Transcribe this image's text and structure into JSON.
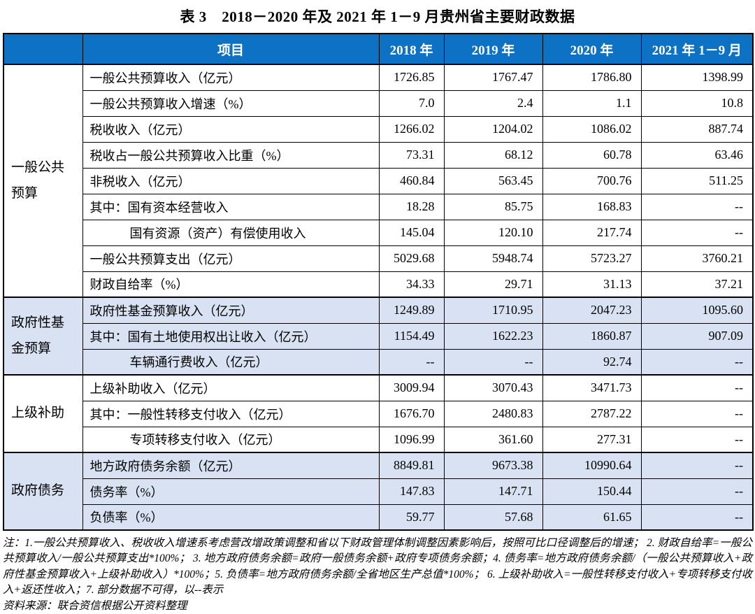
{
  "title": "表 3　2018－2020 年及 2021 年 1－9 月贵州省主要财政数据",
  "table": {
    "item_header": "项目",
    "year_headers": [
      "2018 年",
      "2019 年",
      "2020 年",
      "2021 年 1－9 月"
    ],
    "groups": [
      {
        "name": "一般公共\n预算",
        "shaded": false,
        "rows": [
          {
            "label": "一般公共预算收入（亿元）",
            "indent": 0,
            "values": [
              "1726.85",
              "1767.47",
              "1786.80",
              "1398.99"
            ]
          },
          {
            "label": "一般公共预算收入增速（%）",
            "indent": 0,
            "values": [
              "7.0",
              "2.4",
              "1.1",
              "10.8"
            ]
          },
          {
            "label": "税收收入（亿元）",
            "indent": 0,
            "values": [
              "1266.02",
              "1204.02",
              "1086.02",
              "887.74"
            ]
          },
          {
            "label": "税收占一般公共预算收入比重（%）",
            "indent": 0,
            "values": [
              "73.31",
              "68.12",
              "60.78",
              "63.46"
            ]
          },
          {
            "label": "非税收入（亿元）",
            "indent": 0,
            "values": [
              "460.84",
              "563.45",
              "700.76",
              "511.25"
            ]
          },
          {
            "label": "其中：国有资本经营收入",
            "indent": 0,
            "values": [
              "18.28",
              "85.75",
              "168.83",
              "--"
            ]
          },
          {
            "label": "国有资源（资产）有偿使用收入",
            "indent": 1,
            "values": [
              "145.04",
              "120.10",
              "217.74",
              "--"
            ]
          },
          {
            "label": "一般公共预算支出（亿元）",
            "indent": 0,
            "values": [
              "5029.68",
              "5948.74",
              "5723.27",
              "3760.21"
            ]
          },
          {
            "label": "财政自给率（%）",
            "indent": 0,
            "values": [
              "34.33",
              "29.71",
              "31.13",
              "37.21"
            ]
          }
        ]
      },
      {
        "name": "政府性基\n金预算",
        "shaded": true,
        "rows": [
          {
            "label": "政府性基金预算收入（亿元）",
            "indent": 0,
            "values": [
              "1249.89",
              "1710.95",
              "2047.23",
              "1095.60"
            ]
          },
          {
            "label": "其中：国有土地使用权出让收入（亿元）",
            "indent": 0,
            "values": [
              "1154.49",
              "1622.23",
              "1860.87",
              "907.09"
            ]
          },
          {
            "label": "车辆通行费收入（亿元）",
            "indent": 1,
            "values": [
              "--",
              "--",
              "92.74",
              "--"
            ]
          }
        ]
      },
      {
        "name": "上级补助",
        "shaded": false,
        "rows": [
          {
            "label": "上级补助收入（亿元）",
            "indent": 0,
            "values": [
              "3009.94",
              "3070.43",
              "3471.73",
              "--"
            ]
          },
          {
            "label": "其中：一般性转移支付收入（亿元）",
            "indent": 0,
            "values": [
              "1676.70",
              "2480.83",
              "2787.22",
              "--"
            ]
          },
          {
            "label": "专项转移支付收入（亿元）",
            "indent": 1,
            "values": [
              "1096.99",
              "361.60",
              "277.31",
              "--"
            ]
          }
        ]
      },
      {
        "name": "政府债务",
        "shaded": true,
        "rows": [
          {
            "label": "地方政府债务余额（亿元）",
            "indent": 0,
            "values": [
              "8849.81",
              "9673.38",
              "10990.64",
              "--"
            ]
          },
          {
            "label": "债务率（%）",
            "indent": 0,
            "values": [
              "147.83",
              "147.71",
              "150.44",
              "--"
            ]
          },
          {
            "label": "负债率（%）",
            "indent": 0,
            "values": [
              "59.77",
              "57.68",
              "61.65",
              "--"
            ]
          }
        ]
      }
    ]
  },
  "notes": {
    "note_text": "注：1.一般公共预算收入、税收收入增速系考虑营改增政策调整和省以下财政管理体制调整因素影响后，按照可比口径调整后的增速； 2. 财政自给率=一般公共预算收入/一般公共预算支出*100%； 3. 地方政府债务余额=政府一般债务余额+政府专项债务余额；4. 债务率=地方政府债务余额/（一般公共预算收入+政府性基金预算收入+上级补助收入）*100%；5. 负债率=地方政府债务余额/全省地区生产总值*100%； 6. 上级补助收入=一般性转移支付收入+专项转移支付收入+返还性收入；7. 部分数据不可得，以--表示",
    "source_text": "资料来源：联合资信根据公开资料整理"
  },
  "colors": {
    "header_bg": "#0D72C3",
    "header_text": "#FFFFFF",
    "shaded_row_bg": "#D9E2F3",
    "border": "#000000"
  }
}
